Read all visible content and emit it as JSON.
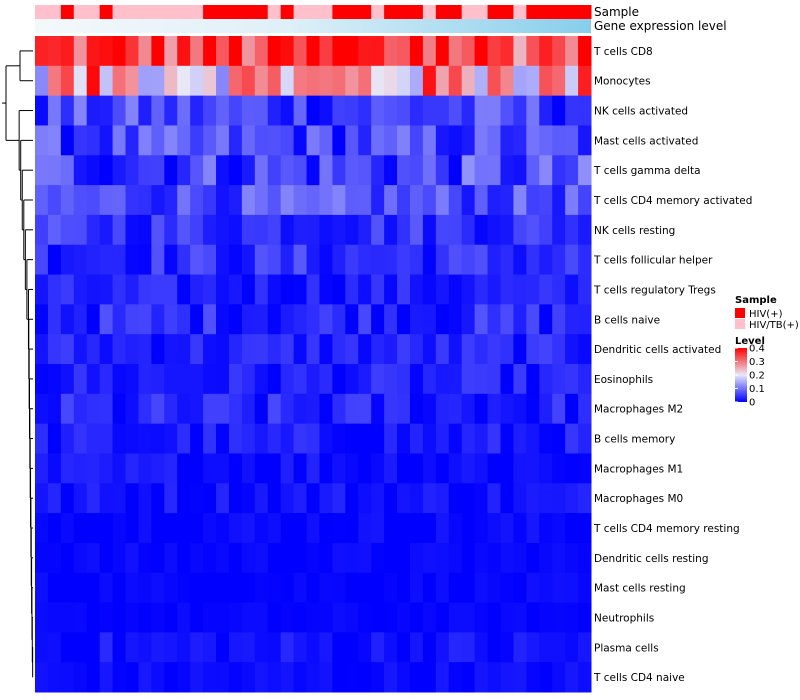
{
  "chart_data": {
    "type": "heatmap",
    "title": "",
    "rows": [
      "T cells CD8",
      "Monocytes",
      "NK cells activated",
      "Mast cells activated",
      "T cells gamma delta",
      "T cells CD4 memory activated",
      "NK cells resting",
      "T cells follicular helper",
      "T cells regulatory  Tregs",
      "B cells naive",
      "Dendritic cells activated",
      "Eosinophils",
      "Macrophages M2",
      "B cells memory",
      "Macrophages M1",
      "Macrophages M0",
      "T cells CD4 memory resting",
      "Dendritic cells resting",
      "Mast cells resting",
      "Neutrophils",
      "Plasma cells",
      "T cells CD4 naive"
    ],
    "row_means": [
      0.33,
      0.24,
      0.05,
      0.05,
      0.05,
      0.06,
      0.04,
      0.035,
      0.02,
      0.03,
      0.025,
      0.02,
      0.02,
      0.015,
      0.01,
      0.01,
      0.005,
      0.004,
      0.003,
      0.002,
      0.01,
      0.006
    ],
    "row_spread": [
      0.1,
      0.14,
      0.06,
      0.06,
      0.07,
      0.05,
      0.04,
      0.04,
      0.03,
      0.04,
      0.03,
      0.03,
      0.04,
      0.03,
      0.025,
      0.025,
      0.015,
      0.01,
      0.01,
      0.008,
      0.025,
      0.015
    ],
    "n_samples": 43,
    "sample_groups": [
      1,
      1,
      0,
      1,
      1,
      0,
      1,
      1,
      1,
      1,
      1,
      1,
      1,
      0,
      0,
      0,
      0,
      0,
      1,
      0,
      1,
      1,
      1,
      0,
      0,
      0,
      1,
      0,
      0,
      0,
      1,
      0,
      0,
      1,
      1,
      0,
      0,
      1,
      0,
      0,
      0,
      0,
      0
    ],
    "annotation_tracks": [
      "Sample",
      "Gene expression level"
    ],
    "value_range": [
      0,
      0.4
    ],
    "colors": {
      "low": "#0000ff",
      "mid": "#e8e8f8",
      "high": "#ff0000",
      "hiv": "#ff0000",
      "hivtb": "#ffc0cb",
      "expression": "#87ceeb"
    },
    "dendrogram": "rows"
  },
  "legend": {
    "sample_title": "Sample",
    "sample_items": [
      {
        "label": "HIV(+)",
        "color": "#ff0000"
      },
      {
        "label": "HIV/TB(+)",
        "color": "#ffc0cb"
      }
    ],
    "level_title": "Level",
    "level_ticks": [
      "0.4",
      "0.3",
      "0.2",
      "0.1",
      "0"
    ],
    "level_tick_values": [
      0.4,
      0.3,
      0.2,
      0.1,
      0
    ]
  }
}
